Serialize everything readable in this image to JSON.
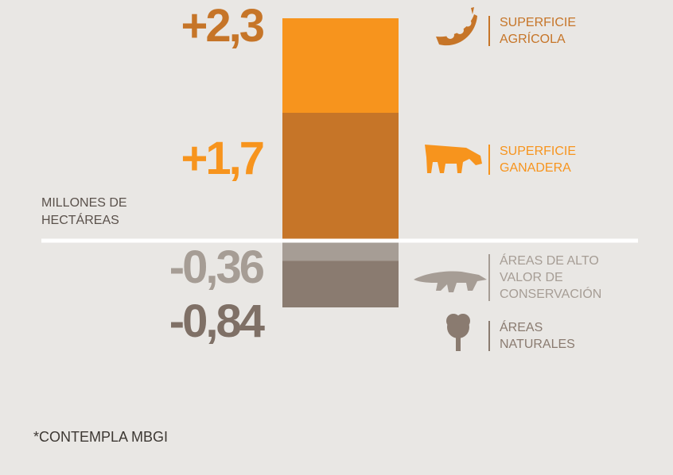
{
  "chart_data": {
    "type": "stacked_bar",
    "y_label": "MILLONES DE HECTÁREAS",
    "footnote": "*CONTEMPLA MBGI",
    "series": [
      {
        "name": "SUPERFICIE AGRÍCOLA",
        "color": "#c67528",
        "values": [
          2.3
        ],
        "value_labels": [
          "+2,3"
        ]
      },
      {
        "name": "SUPERFICIE GANADERA",
        "color": "#f7941d",
        "values": [
          1.7
        ],
        "value_labels": [
          "+1,7"
        ]
      },
      {
        "name": "ÁREAS DE ALTO VALOR DE CONSERVACIÓN",
        "color": "#a69d95",
        "values": [
          -0.36
        ],
        "value_labels": [
          "-0,36"
        ]
      },
      {
        "name": "ÁREAS NATURALES",
        "color": "#8a7b70",
        "values": [
          -0.84
        ],
        "value_labels": [
          "-0,84"
        ]
      }
    ]
  }
}
